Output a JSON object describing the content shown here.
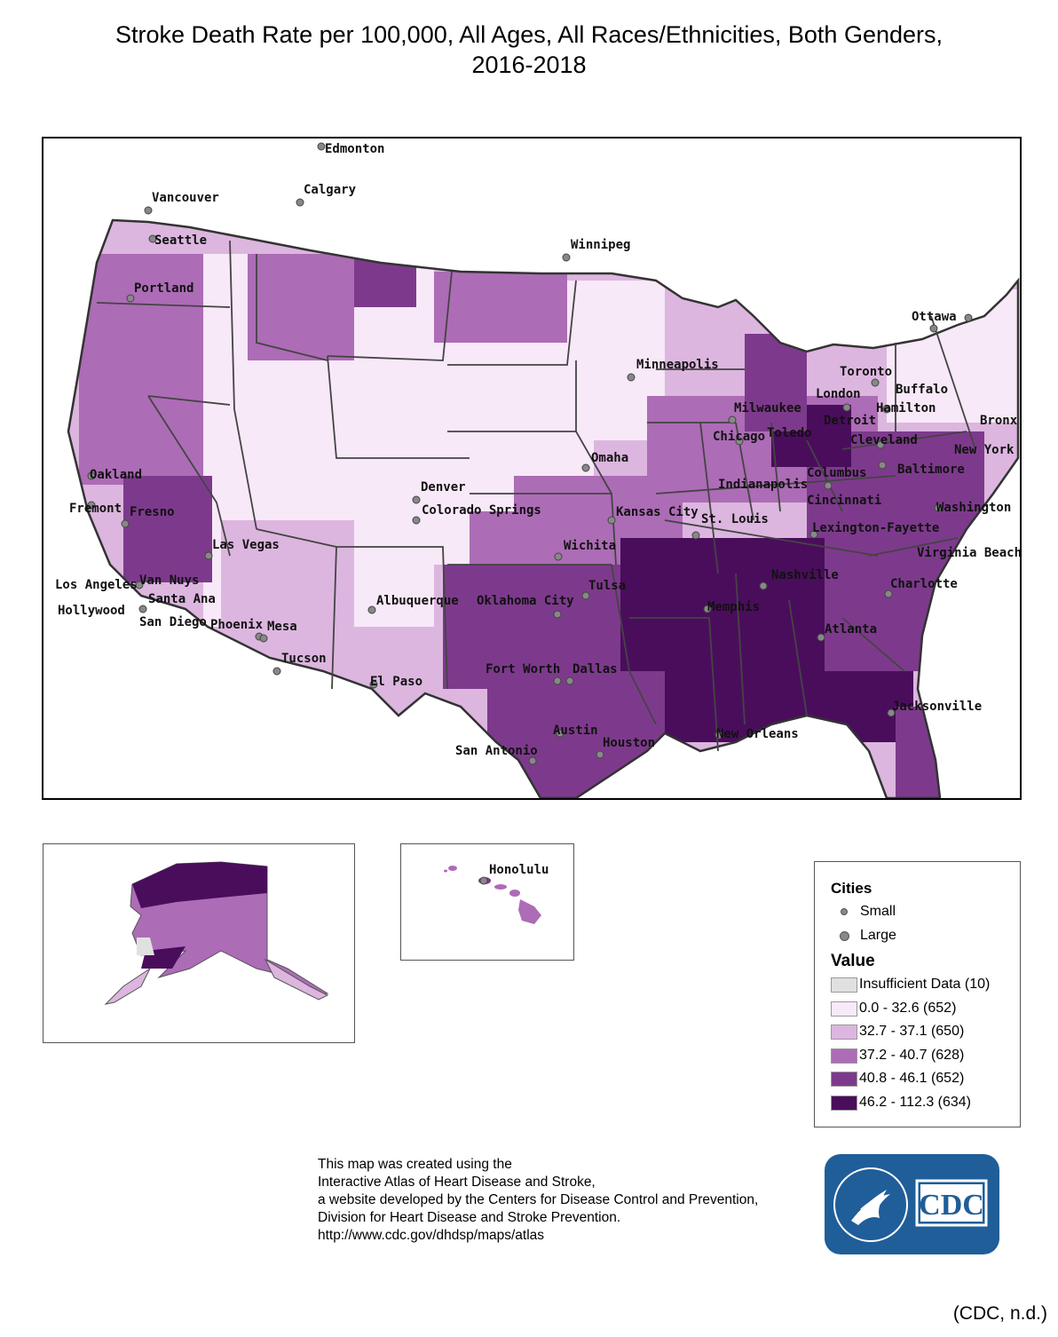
{
  "title": {
    "line1": "Stroke Death Rate per 100,000, All Ages, All Races/Ethnicities, Both Genders,",
    "line2": "2016-2018"
  },
  "map": {
    "cities": [
      "Edmonton",
      "Calgary",
      "Vancouver",
      "Seattle",
      "Portland",
      "Winnipeg",
      "Ottawa",
      "Minneapolis",
      "Toronto",
      "London",
      "Buffalo",
      "Hamilton",
      "Milwaukee",
      "Detroit",
      "Bronx",
      "Chicago",
      "Toledo",
      "Cleveland",
      "New York",
      "Omaha",
      "Columbus",
      "Baltimore",
      "Oakland",
      "Denver",
      "Indianapolis",
      "Cincinnati",
      "Washington",
      "Fremont",
      "Fresno",
      "Colorado Springs",
      "Kansas City",
      "St. Louis",
      "Lexington-Fayette",
      "Las Vegas",
      "Wichita",
      "Virginia Beach",
      "Nashville",
      "Los Angeles",
      "Van Nuys",
      "Tulsa",
      "Charlotte",
      "Santa Ana",
      "Hollywood",
      "Albuquerque",
      "Oklahoma City",
      "Memphis",
      "San Diego",
      "Phoenix",
      "Mesa",
      "Atlanta",
      "Tucson",
      "Fort Worth",
      "Dallas",
      "El Paso",
      "Jacksonville",
      "Austin",
      "New Orleans",
      "Houston",
      "San Antonio",
      "Honolulu"
    ]
  },
  "legend": {
    "cities_title": "Cities",
    "small_label": "Small",
    "large_label": "Large",
    "value_title": "Value",
    "classes": [
      {
        "label": "Insufficient Data (10)",
        "color": "#e0e0e0"
      },
      {
        "label": "0.0 - 32.6 (652)",
        "color": "#f7e9f7"
      },
      {
        "label": "32.7 - 37.1 (650)",
        "color": "#dcb6df"
      },
      {
        "label": "37.2 - 40.7 (628)",
        "color": "#ad6cb6"
      },
      {
        "label": "40.8 - 46.1 (652)",
        "color": "#7d3a8c"
      },
      {
        "label": "46.2 - 112.3 (634)",
        "color": "#4a0d5c"
      }
    ]
  },
  "credit": {
    "line1": "This map was created using the",
    "line2": "Interactive Atlas of Heart Disease and Stroke,",
    "line3": "a website developed by the Centers for Disease Control and Prevention,",
    "line4": "Division for Heart Disease and Stroke Prevention.",
    "line5": "http://www.cdc.gov/dhdsp/maps/atlas"
  },
  "logo": {
    "text": "CDC",
    "color": "#1f5e99"
  },
  "citation": "(CDC, n.d.)"
}
